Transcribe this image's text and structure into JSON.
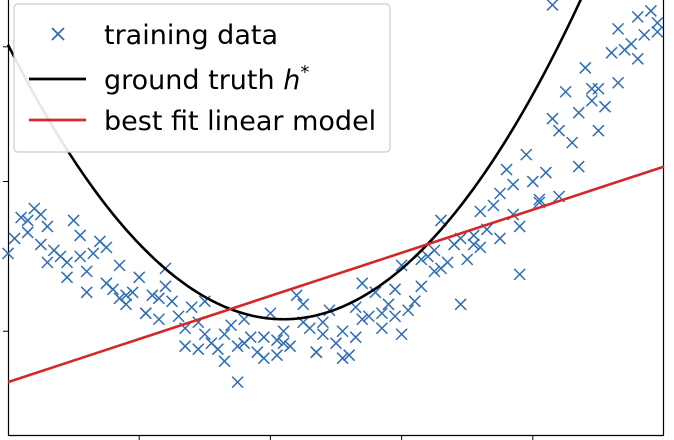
{
  "chart_data": {
    "type": "scatter",
    "title": "",
    "xlabel": "",
    "ylabel": "",
    "legend": {
      "placement": "top-left",
      "entries": [
        {
          "label": "training data",
          "marker": "x",
          "color": "#2f6db3"
        },
        {
          "label": "ground truth",
          "label_math": "h",
          "label_sup": "*",
          "marker": "line",
          "color": "#000000"
        },
        {
          "label": "best fit linear model",
          "marker": "line",
          "color": "#d62728"
        }
      ]
    },
    "ground_truth": {
      "type": "quadratic",
      "vertex_x": 0.42,
      "vertex_y": 0.39,
      "a": 5.2,
      "color": "#000000"
    },
    "best_fit": {
      "type": "linear",
      "intercept": 0.18,
      "slope": 0.72,
      "color": "#d62728"
    },
    "series": [
      {
        "name": "training data",
        "marker": "x",
        "color": "#2f6db3",
        "x": [
          0.0,
          0.01,
          0.02,
          0.03,
          0.04,
          0.05,
          0.06,
          0.07,
          0.08,
          0.09,
          0.1,
          0.11,
          0.12,
          0.13,
          0.14,
          0.15,
          0.16,
          0.17,
          0.18,
          0.19,
          0.2,
          0.21,
          0.22,
          0.23,
          0.24,
          0.25,
          0.26,
          0.27,
          0.28,
          0.29,
          0.3,
          0.31,
          0.32,
          0.33,
          0.34,
          0.35,
          0.36,
          0.37,
          0.38,
          0.39,
          0.4,
          0.41,
          0.42,
          0.43,
          0.44,
          0.45,
          0.46,
          0.47,
          0.48,
          0.49,
          0.5,
          0.51,
          0.52,
          0.53,
          0.54,
          0.55,
          0.56,
          0.57,
          0.58,
          0.59,
          0.6,
          0.61,
          0.62,
          0.63,
          0.64,
          0.65,
          0.66,
          0.67,
          0.68,
          0.69,
          0.7,
          0.71,
          0.72,
          0.73,
          0.74,
          0.75,
          0.76,
          0.77,
          0.78,
          0.79,
          0.8,
          0.81,
          0.82,
          0.83,
          0.84,
          0.85,
          0.86,
          0.87,
          0.88,
          0.89,
          0.9,
          0.91,
          0.92,
          0.93,
          0.94,
          0.95,
          0.96,
          0.97,
          0.98,
          0.99,
          0.03,
          0.06,
          0.09,
          0.12,
          0.15,
          0.18,
          0.21,
          0.24,
          0.27,
          0.3,
          0.33,
          0.36,
          0.39,
          0.42,
          0.45,
          0.48,
          0.51,
          0.54,
          0.57,
          0.6,
          0.63,
          0.66,
          0.69,
          0.72,
          0.75,
          0.78,
          0.81,
          0.84,
          0.87,
          0.9,
          0.93,
          0.96,
          0.99,
          0.05,
          0.11,
          0.17,
          0.23,
          0.29,
          0.35,
          0.41,
          0.47,
          0.53,
          0.59,
          0.65,
          0.71,
          0.77,
          0.83,
          0.89,
          0.95
        ],
        "y": [
          0.61,
          0.66,
          0.73,
          0.68,
          0.76,
          0.64,
          0.7,
          0.62,
          0.6,
          0.58,
          0.72,
          0.67,
          0.55,
          0.61,
          0.65,
          0.51,
          0.49,
          0.57,
          0.44,
          0.48,
          0.53,
          0.41,
          0.47,
          0.46,
          0.5,
          0.45,
          0.4,
          0.36,
          0.43,
          0.38,
          0.34,
          0.31,
          0.29,
          0.34,
          0.37,
          0.3,
          0.31,
          0.33,
          0.28,
          0.26,
          0.41,
          0.32,
          0.35,
          0.3,
          0.47,
          0.38,
          0.36,
          0.28,
          0.38,
          0.42,
          0.31,
          0.35,
          0.27,
          0.43,
          0.39,
          0.4,
          0.48,
          0.36,
          0.44,
          0.49,
          0.57,
          0.42,
          0.45,
          0.59,
          0.6,
          0.62,
          0.72,
          0.58,
          0.64,
          0.66,
          0.59,
          0.67,
          0.75,
          0.69,
          0.77,
          0.81,
          0.89,
          0.74,
          0.7,
          0.94,
          0.85,
          0.78,
          0.88,
          1.06,
          1.02,
          1.15,
          0.98,
          1.08,
          1.23,
          1.12,
          1.16,
          1.1,
          1.28,
          1.36,
          1.29,
          1.31,
          1.4,
          1.34,
          1.42,
          1.38,
          0.72,
          0.58,
          0.53,
          0.48,
          0.63,
          0.47,
          0.41,
          0.56,
          0.3,
          0.45,
          0.25,
          0.39,
          0.33,
          0.31,
          0.44,
          0.34,
          0.26,
          0.51,
          0.41,
          0.34,
          0.5,
          0.56,
          0.44,
          0.63,
          0.66,
          0.54,
          0.79,
          0.8,
          0.9,
          1.02,
          1.18,
          1.26,
          1.35,
          0.74,
          0.6,
          0.46,
          0.39,
          0.29,
          0.18,
          0.27,
          0.28,
          0.33,
          0.4,
          0.55,
          0.64,
          0.84,
          1.44,
          1.16,
          1.49
        ]
      }
    ],
    "xlim": [
      0,
      1
    ],
    "ylim": [
      0,
      1.55
    ],
    "grid": false
  }
}
